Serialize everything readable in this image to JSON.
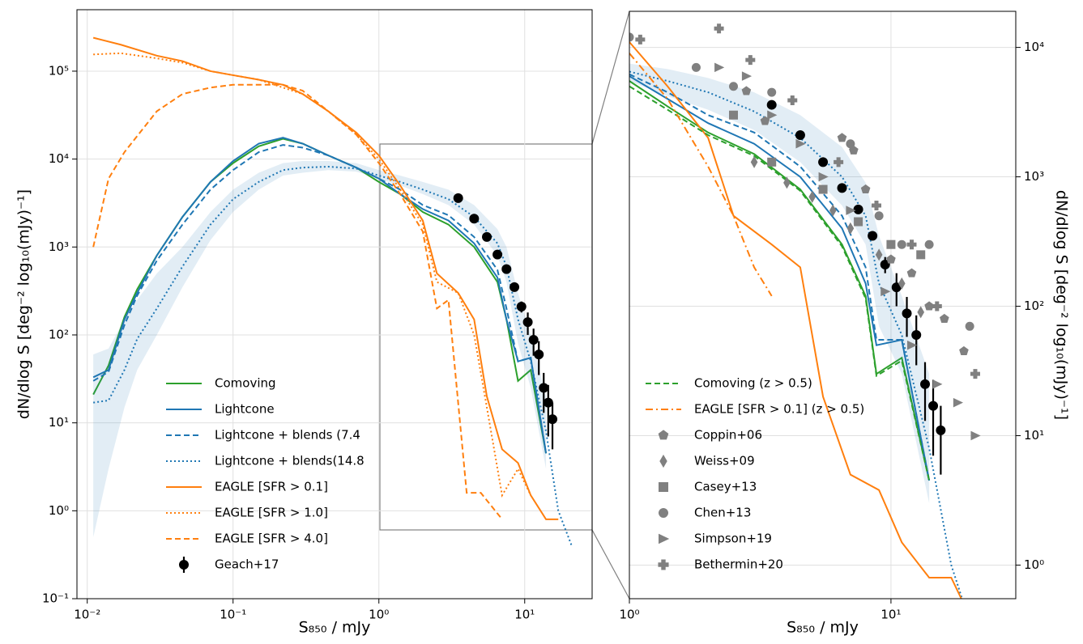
{
  "chart_data": [
    {
      "type": "line",
      "xlog": true,
      "ylog": true,
      "grid": true,
      "legend": "lower left",
      "xlabel": "S₈₅₀ / mJy",
      "ylabel": "dN/dlog S [deg⁻² log₁₀(mJy)⁻¹]",
      "ylabel_side": "left",
      "xlim": [
        0.0085,
        29
      ],
      "ylim": [
        0.1,
        500000
      ],
      "xticks": [
        {
          "value": 0.01,
          "label": "10⁻²"
        },
        {
          "value": 0.1,
          "label": "10⁻¹"
        },
        {
          "value": 1,
          "label": "10⁰"
        },
        {
          "value": 10,
          "label": "10¹"
        }
      ],
      "yticks": [
        {
          "value": 0.1,
          "label": "10⁻¹"
        },
        {
          "value": 1,
          "label": "10⁰"
        },
        {
          "value": 10,
          "label": "10¹"
        },
        {
          "value": 100,
          "label": "10²"
        },
        {
          "value": 1000,
          "label": "10³"
        },
        {
          "value": 10000,
          "label": "10⁴"
        },
        {
          "value": 100000,
          "label": "10⁵"
        }
      ],
      "series": [
        {
          "name": "Comoving",
          "color": "#2ca02c",
          "dash": "solid",
          "x": [
            0.011,
            0.014,
            0.018,
            0.022,
            0.03,
            0.045,
            0.07,
            0.1,
            0.15,
            0.22,
            0.3,
            0.45,
            0.7,
            1.0,
            1.4,
            2.0,
            3.0,
            4.5,
            6.5,
            7.5,
            9.0,
            11,
            14
          ],
          "values": [
            21,
            45,
            160,
            330,
            800,
            2200,
            5500,
            9000,
            14000,
            17000,
            15000,
            11000,
            8000,
            5500,
            4000,
            2500,
            1800,
            1000,
            400,
            150,
            30,
            40,
            4.5
          ]
        },
        {
          "name": "Lightcone",
          "color": "#1f77b4",
          "dash": "solid",
          "x": [
            0.011,
            0.014,
            0.018,
            0.022,
            0.03,
            0.045,
            0.07,
            0.1,
            0.15,
            0.22,
            0.3,
            0.45,
            0.7,
            1.0,
            1.4,
            2.0,
            3.0,
            4.5,
            6.5,
            7.5,
            9.0,
            11,
            14
          ],
          "values": [
            33,
            40,
            150,
            300,
            800,
            2200,
            5500,
            9500,
            15000,
            17500,
            15000,
            11000,
            8000,
            6000,
            4000,
            2700,
            2000,
            1100,
            450,
            150,
            50,
            55,
            4.5
          ]
        },
        {
          "name": "Lightcone + blends (7.4",
          "color": "#1f77b4",
          "dash": "dashed",
          "x": [
            0.011,
            0.014,
            0.018,
            0.022,
            0.03,
            0.045,
            0.07,
            0.1,
            0.15,
            0.22,
            0.3,
            0.45,
            0.7,
            1.0,
            1.4,
            2.0,
            3.0,
            4.5,
            6.5,
            7.5,
            9.0,
            11,
            14
          ],
          "values": [
            30,
            38,
            130,
            280,
            700,
            1800,
            4500,
            7500,
            12000,
            14500,
            13500,
            11000,
            8000,
            6000,
            4500,
            3000,
            2300,
            1300,
            550,
            200,
            50,
            55,
            4.5
          ]
        },
        {
          "name": "Lightcone + blends(14.8",
          "color": "#1f77b4",
          "dash": "dotted",
          "x": [
            0.011,
            0.014,
            0.018,
            0.022,
            0.03,
            0.045,
            0.07,
            0.1,
            0.15,
            0.22,
            0.3,
            0.45,
            0.7,
            1.0,
            1.4,
            2.0,
            3.0,
            4.5,
            6.5,
            7.5,
            9.0,
            11,
            14,
            17,
            21
          ],
          "values": [
            17,
            18,
            40,
            90,
            200,
            600,
            1800,
            3500,
            5500,
            7500,
            8000,
            8200,
            7800,
            6500,
            5500,
            4500,
            3500,
            2200,
            1100,
            600,
            150,
            50,
            8,
            1,
            0.4
          ],
          "band_lower": [
            0.5,
            3,
            15,
            40,
            100,
            350,
            1200,
            2500,
            4500,
            6500,
            7000,
            7500,
            7200,
            6000,
            5000,
            4000,
            3000,
            1800,
            800,
            400,
            80,
            25,
            3,
            null,
            null
          ],
          "band_upper": [
            60,
            70,
            150,
            250,
            500,
            1000,
            2500,
            4500,
            7000,
            9000,
            9500,
            9500,
            9000,
            7500,
            6500,
            5500,
            4500,
            3000,
            1600,
            1000,
            300,
            100,
            20,
            null,
            null
          ]
        },
        {
          "name": "EAGLE [SFR > 0.1]",
          "color": "#ff7f0e",
          "dash": "solid",
          "x": [
            0.011,
            0.017,
            0.03,
            0.045,
            0.07,
            0.1,
            0.15,
            0.22,
            0.3,
            0.45,
            0.7,
            1.0,
            1.4,
            2.0,
            2.5,
            3.5,
            4.5,
            5.5,
            7,
            9,
            11,
            14,
            17
          ],
          "values": [
            240000,
            200000,
            150000,
            130000,
            100000,
            90000,
            80000,
            70000,
            55000,
            35000,
            20000,
            11000,
            5000,
            2000,
            500,
            300,
            150,
            20,
            5,
            3.5,
            1.5,
            0.8,
            0.8
          ]
        },
        {
          "name": "EAGLE [SFR > 1.0]",
          "color": "#ff7f0e",
          "dash": "dotted",
          "x": [
            0.011,
            0.017,
            0.03,
            0.045,
            0.07,
            0.1,
            0.15,
            0.22,
            0.3,
            0.45,
            0.7,
            1.0,
            1.4,
            2.0,
            2.5,
            3.5,
            4.5,
            5.5,
            7,
            9,
            11
          ],
          "values": [
            155000,
            160000,
            140000,
            125000,
            100000,
            90000,
            80000,
            65000,
            55000,
            35000,
            19000,
            10000,
            4500,
            1800,
            400,
            300,
            100,
            15,
            1.5,
            3,
            1.5
          ]
        },
        {
          "name": "EAGLE [SFR > 4.0]",
          "color": "#ff7f0e",
          "dash": "dashed",
          "x": [
            0.011,
            0.014,
            0.018,
            0.03,
            0.045,
            0.07,
            0.1,
            0.15,
            0.22,
            0.3,
            0.45,
            0.7,
            1.0,
            1.4,
            2.0,
            2.5,
            3.0,
            4.0,
            5.0,
            7.0
          ],
          "values": [
            1000,
            6000,
            12000,
            35000,
            55000,
            65000,
            70000,
            70000,
            70000,
            60000,
            35000,
            19000,
            9000,
            4000,
            1500,
            200,
            250,
            1.6,
            1.6,
            0.8
          ]
        },
        {
          "name": "Geach+17",
          "color": "#000000",
          "marker": "circle",
          "x": [
            3.5,
            4.5,
            5.5,
            6.5,
            7.5,
            8.5,
            9.5,
            10.5,
            11.5,
            12.5,
            13.5,
            14.5,
            15.5
          ],
          "values": [
            3600,
            2100,
            1300,
            820,
            560,
            350,
            210,
            140,
            88,
            60,
            25,
            17,
            11
          ],
          "err": [
            0,
            0,
            0,
            0,
            0,
            0,
            30,
            40,
            30,
            25,
            12,
            10,
            6
          ]
        }
      ]
    },
    {
      "type": "line",
      "xlog": true,
      "ylog": true,
      "grid": true,
      "legend": "lower left",
      "xlabel": "S₈₅₀ / mJy",
      "ylabel": "dN/dlog S [deg⁻² log₁₀(mJy)⁻¹]",
      "ylabel_side": "right",
      "xlim": [
        1,
        30
      ],
      "ylim": [
        0.55,
        19000
      ],
      "xticks": [
        {
          "value": 1,
          "label": "10⁰"
        },
        {
          "value": 10,
          "label": "10¹"
        }
      ],
      "yticks": [
        {
          "value": 1,
          "label": "10⁰"
        },
        {
          "value": 10,
          "label": "10¹"
        },
        {
          "value": 100,
          "label": "10²"
        },
        {
          "value": 1000,
          "label": "10³"
        },
        {
          "value": 10000,
          "label": "10⁴"
        }
      ],
      "series": [
        {
          "name": "Comoving",
          "color": "#2ca02c",
          "dash": "solid",
          "legend": false,
          "x": [
            1.0,
            1.4,
            2.0,
            3.0,
            4.5,
            6.5,
            8.0,
            8.8,
            11,
            14
          ],
          "values": [
            5500,
            3500,
            2200,
            1500,
            800,
            300,
            120,
            30,
            40,
            4.5
          ]
        },
        {
          "name": "Lightcone",
          "color": "#1f77b4",
          "dash": "solid",
          "legend": false,
          "x": [
            1.0,
            1.4,
            2.0,
            3.0,
            4.5,
            6.5,
            8.0,
            8.8,
            11,
            14
          ],
          "values": [
            6000,
            4000,
            2600,
            1800,
            1000,
            400,
            150,
            50,
            55,
            4.5
          ]
        },
        {
          "name": "Lightcone + blends (7.4",
          "color": "#1f77b4",
          "dash": "dashed",
          "legend": false,
          "x": [
            1.0,
            1.4,
            2.0,
            3.0,
            4.5,
            6.5,
            8.0,
            8.8,
            11,
            14
          ],
          "values": [
            6200,
            4500,
            3000,
            2200,
            1200,
            500,
            200,
            55,
            55,
            4.5
          ]
        },
        {
          "name": "Lightcone + blends(14.8",
          "color": "#1f77b4",
          "dash": "dotted",
          "legend": false,
          "x": [
            1.0,
            1.4,
            2.0,
            3.0,
            4.5,
            6.5,
            8.0,
            9.0,
            11,
            14,
            17,
            19
          ],
          "values": [
            6500,
            5500,
            4500,
            3200,
            2000,
            1000,
            500,
            150,
            60,
            8,
            1,
            0.5
          ],
          "band_lower": [
            5500,
            4200,
            3300,
            2300,
            1300,
            600,
            300,
            70,
            30,
            3,
            null,
            null
          ],
          "band_upper": [
            7500,
            6800,
            5800,
            4500,
            3000,
            1700,
            900,
            350,
            120,
            30,
            null,
            null
          ]
        },
        {
          "name": "EAGLE [SFR > 0.1]",
          "color": "#ff7f0e",
          "dash": "solid",
          "legend": false,
          "x": [
            1.0,
            1.4,
            2.0,
            2.5,
            3.5,
            4.5,
            5.5,
            7,
            9,
            11,
            14,
            17,
            19
          ],
          "values": [
            11000,
            5000,
            2000,
            500,
            300,
            200,
            20,
            5,
            3.8,
            1.5,
            0.8,
            0.8,
            0.5
          ]
        },
        {
          "name": "Comoving (z > 0.5)",
          "color": "#2ca02c",
          "dash": "dashed",
          "x": [
            1.0,
            1.4,
            2.0,
            3.0,
            4.5,
            6.5,
            8.0,
            8.8,
            11,
            14
          ],
          "values": [
            5000,
            3300,
            2100,
            1450,
            780,
            290,
            115,
            29,
            38,
            4.5
          ]
        },
        {
          "name": "EAGLE [SFR > 0.1] (z > 0.5)",
          "color": "#ff7f0e",
          "dash": "dashdot",
          "x": [
            1.0,
            1.4,
            2.0,
            2.5,
            3.0,
            3.5
          ],
          "values": [
            9000,
            4000,
            1200,
            500,
            200,
            120
          ]
        },
        {
          "name": "Geach+17",
          "color": "#000000",
          "marker": "circle",
          "legend": false,
          "x": [
            3.5,
            4.5,
            5.5,
            6.5,
            7.5,
            8.5,
            9.5,
            10.5,
            11.5,
            12.5,
            13.5,
            14.5,
            15.5
          ],
          "values": [
            3600,
            2100,
            1300,
            820,
            560,
            350,
            210,
            140,
            88,
            60,
            25,
            17,
            11
          ],
          "err": [
            0,
            0,
            0,
            0,
            0,
            0,
            30,
            40,
            30,
            25,
            12,
            10,
            6
          ]
        },
        {
          "name": "Coppin+06",
          "color": "#808080",
          "marker": "pentagon",
          "x": [
            2.8,
            3.3,
            6.5,
            7.2,
            8.0,
            10.0,
            12,
            14,
            16,
            19
          ],
          "values": [
            4600,
            2700,
            2000,
            1600,
            800,
            230,
            180,
            100,
            80,
            45
          ]
        },
        {
          "name": "Weiss+09",
          "color": "#808080",
          "marker": "diamond",
          "x": [
            3.0,
            4.0,
            5.0,
            6.0,
            7.0,
            9.0,
            11,
            13
          ],
          "values": [
            1300,
            900,
            700,
            550,
            400,
            250,
            150,
            90
          ]
        },
        {
          "name": "Casey+13",
          "color": "#808080",
          "marker": "square",
          "x": [
            2.5,
            3.5,
            5.5,
            7.5,
            10,
            13
          ],
          "values": [
            3000,
            1300,
            800,
            450,
            300,
            250
          ]
        },
        {
          "name": "Chen+13",
          "color": "#808080",
          "marker": "circle",
          "x": [
            1.0,
            1.8,
            2.5,
            3.5,
            7,
            9,
            11,
            14,
            20
          ],
          "values": [
            12000,
            7000,
            5000,
            4500,
            1800,
            500,
            300,
            300,
            70
          ]
        },
        {
          "name": "Simpson+19",
          "color": "#808080",
          "marker": "triangle",
          "x": [
            2.2,
            2.8,
            3.5,
            4.5,
            5.5,
            7,
            9.5,
            12,
            15,
            18,
            21
          ],
          "values": [
            7000,
            6000,
            3000,
            1800,
            1000,
            550,
            130,
            50,
            25,
            18,
            10
          ]
        },
        {
          "name": "Bethermin+20",
          "color": "#808080",
          "marker": "plus",
          "x": [
            1.1,
            2.2,
            2.9,
            4.2,
            6.3,
            8.8,
            12,
            15,
            21
          ],
          "values": [
            11500,
            14000,
            8000,
            3900,
            1300,
            600,
            300,
            100,
            30
          ]
        }
      ]
    }
  ]
}
